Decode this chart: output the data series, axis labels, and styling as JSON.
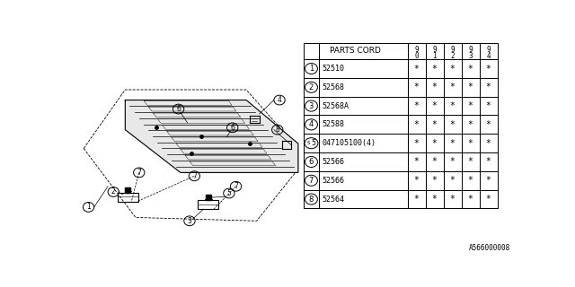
{
  "title": "",
  "bg_color": "#ffffff",
  "border_color": "#000000",
  "diagram_code": "A566000008",
  "table": {
    "header_col": "PARTS CORD",
    "year_cols": [
      [
        "9",
        "0"
      ],
      [
        "9",
        "1"
      ],
      [
        "9",
        "2"
      ],
      [
        "9",
        "3"
      ],
      [
        "9",
        "4"
      ]
    ],
    "rows": [
      {
        "num": "1",
        "part": "52510",
        "vals": [
          "*",
          "*",
          "*",
          "*",
          "*"
        ],
        "special": false
      },
      {
        "num": "2",
        "part": "52568",
        "vals": [
          "*",
          "*",
          "*",
          "*",
          "*"
        ],
        "special": false
      },
      {
        "num": "3",
        "part": "52568A",
        "vals": [
          "*",
          "*",
          "*",
          "*",
          "*"
        ],
        "special": false
      },
      {
        "num": "4",
        "part": "52588",
        "vals": [
          "*",
          "*",
          "*",
          "*",
          "*"
        ],
        "special": false
      },
      {
        "num": "5",
        "part": "047105100(4)",
        "vals": [
          "*",
          "*",
          "*",
          "*",
          "*"
        ],
        "special": true
      },
      {
        "num": "6",
        "part": "52566",
        "vals": [
          "*",
          "*",
          "*",
          "*",
          "*"
        ],
        "special": false
      },
      {
        "num": "7",
        "part": "52566",
        "vals": [
          "*",
          "*",
          "*",
          "*",
          "*"
        ],
        "special": false
      },
      {
        "num": "8",
        "part": "52564",
        "vals": [
          "*",
          "*",
          "*",
          "*",
          "*"
        ],
        "special": false
      }
    ]
  }
}
